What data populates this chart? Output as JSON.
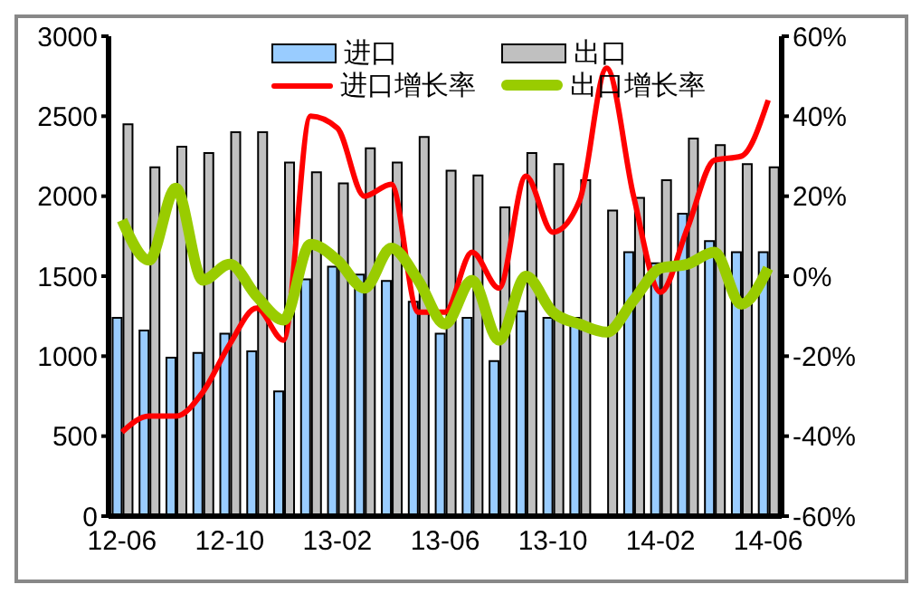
{
  "chart_data": {
    "type": "bar",
    "categories": [
      "12-06",
      null,
      null,
      null,
      "12-10",
      null,
      null,
      null,
      "13-02",
      null,
      null,
      null,
      "13-06",
      null,
      null,
      null,
      "13-10",
      null,
      null,
      null,
      "14-02",
      null,
      null,
      null,
      "14-06"
    ],
    "series": [
      {
        "name": "进口",
        "color": "#99ccff",
        "values": [
          1240,
          1160,
          990,
          1020,
          1140,
          1030,
          780,
          1480,
          1560,
          1510,
          1470,
          1340,
          1140,
          1240,
          970,
          1280,
          1240,
          1240,
          null,
          1650,
          1580,
          1890,
          1720,
          1650,
          1650
        ]
      },
      {
        "name": "出口",
        "color": "#c0c0c0",
        "values": [
          2450,
          2180,
          2310,
          2270,
          2400,
          2400,
          2210,
          2150,
          2080,
          2300,
          2210,
          2370,
          2160,
          2130,
          1930,
          2270,
          2200,
          2100,
          1910,
          1990,
          2100,
          2360,
          2320,
          2200,
          2180
        ]
      },
      {
        "name": "进口增长率",
        "type": "line",
        "axis": "y2",
        "color": "#ff0000",
        "values": [
          -39,
          -35,
          -35,
          -29,
          -17,
          -8,
          -16,
          40,
          37,
          20,
          23,
          -9,
          -9,
          6,
          -3,
          25,
          11,
          19,
          52,
          20,
          -4,
          12,
          29,
          30,
          44
        ]
      },
      {
        "name": "出口增长率",
        "type": "line",
        "axis": "y2",
        "color": "#99cc00",
        "values": [
          14,
          4,
          22,
          -1,
          3,
          -5,
          -11,
          8,
          4,
          -3,
          7,
          -1,
          -12,
          -1,
          -16,
          0,
          -9,
          -12,
          -14,
          -6,
          2,
          3,
          6,
          -7,
          2
        ]
      }
    ],
    "ylim": [
      0,
      3000
    ],
    "yticks": [
      0,
      500,
      1000,
      1500,
      2000,
      2500,
      3000
    ],
    "y2lim": [
      -60,
      60
    ],
    "y2ticks": [
      {
        "value": -60,
        "label": "-60%"
      },
      {
        "value": -40,
        "label": "-40%"
      },
      {
        "value": -20,
        "label": "-20%"
      },
      {
        "value": 0,
        "label": "0%"
      },
      {
        "value": 20,
        "label": "20%"
      },
      {
        "value": 40,
        "label": "40%"
      },
      {
        "value": 60,
        "label": "60%"
      }
    ],
    "grid": false,
    "legend": "top",
    "marker": "none",
    "line_style": "solid"
  }
}
